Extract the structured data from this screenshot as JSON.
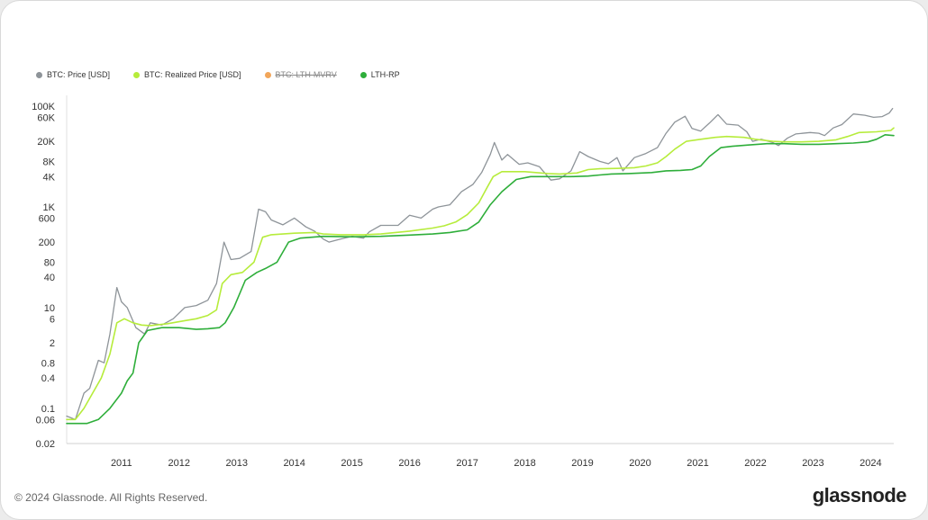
{
  "legend": [
    {
      "label": "BTC: Price [USD]",
      "color": "#8e9499",
      "active": true
    },
    {
      "label": "BTC: Realized Price [USD]",
      "color": "#b6ec3b",
      "active": true
    },
    {
      "label": "BTC: LTH-MVRV",
      "color": "#f2a65a",
      "active": false
    },
    {
      "label": "LTH-RP",
      "color": "#2eae3a",
      "active": true
    }
  ],
  "footer": {
    "copyright": "© 2024 Glassnode. All Rights Reserved.",
    "brand": "glassnode"
  },
  "chart_data": {
    "type": "line",
    "y_scale": "log",
    "ylim": [
      0.02,
      100000
    ],
    "xlim": [
      2010.55,
      2024.9
    ],
    "y_ticks": [
      {
        "value": 100000,
        "label": "100K"
      },
      {
        "value": 60000,
        "label": "60K"
      },
      {
        "value": 20000,
        "label": "20K"
      },
      {
        "value": 8000,
        "label": "8K"
      },
      {
        "value": 4000,
        "label": "4K"
      },
      {
        "value": 1000,
        "label": "1K"
      },
      {
        "value": 600,
        "label": "600"
      },
      {
        "value": 200,
        "label": "200"
      },
      {
        "value": 80,
        "label": "80"
      },
      {
        "value": 40,
        "label": "40"
      },
      {
        "value": 10,
        "label": "10"
      },
      {
        "value": 6,
        "label": "6"
      },
      {
        "value": 2,
        "label": "2"
      },
      {
        "value": 0.8,
        "label": "0.8"
      },
      {
        "value": 0.4,
        "label": "0.4"
      },
      {
        "value": 0.1,
        "label": "0.1"
      },
      {
        "value": 0.06,
        "label": "0.06"
      },
      {
        "value": 0.02,
        "label": "0.02"
      }
    ],
    "x_ticks": [
      {
        "value": 2011,
        "label": "2011"
      },
      {
        "value": 2012,
        "label": "2012"
      },
      {
        "value": 2013,
        "label": "2013"
      },
      {
        "value": 2014,
        "label": "2014"
      },
      {
        "value": 2015,
        "label": "2015"
      },
      {
        "value": 2016,
        "label": "2016"
      },
      {
        "value": 2017,
        "label": "2017"
      },
      {
        "value": 2018,
        "label": "2018"
      },
      {
        "value": 2019,
        "label": "2019"
      },
      {
        "value": 2020,
        "label": "2020"
      },
      {
        "value": 2021,
        "label": "2021"
      },
      {
        "value": 2022,
        "label": "2022"
      },
      {
        "value": 2023,
        "label": "2023"
      },
      {
        "value": 2024,
        "label": "2024"
      }
    ],
    "series": [
      {
        "name": "BTC: Price [USD]",
        "color": "#8e9499",
        "width": 1.3,
        "points": [
          [
            2010.55,
            0.07
          ],
          [
            2010.7,
            0.06
          ],
          [
            2010.85,
            0.2
          ],
          [
            2010.95,
            0.25
          ],
          [
            2011.1,
            0.9
          ],
          [
            2011.2,
            0.8
          ],
          [
            2011.3,
            3
          ],
          [
            2011.42,
            25
          ],
          [
            2011.5,
            13
          ],
          [
            2011.6,
            10
          ],
          [
            2011.75,
            4
          ],
          [
            2011.9,
            3
          ],
          [
            2012.0,
            5
          ],
          [
            2012.2,
            4.5
          ],
          [
            2012.4,
            6
          ],
          [
            2012.6,
            10
          ],
          [
            2012.8,
            11
          ],
          [
            2013.0,
            14
          ],
          [
            2013.15,
            30
          ],
          [
            2013.28,
            200
          ],
          [
            2013.4,
            90
          ],
          [
            2013.55,
            95
          ],
          [
            2013.75,
            130
          ],
          [
            2013.88,
            900
          ],
          [
            2014.0,
            800
          ],
          [
            2014.1,
            550
          ],
          [
            2014.3,
            440
          ],
          [
            2014.5,
            600
          ],
          [
            2014.7,
            400
          ],
          [
            2014.85,
            330
          ],
          [
            2015.0,
            230
          ],
          [
            2015.1,
            200
          ],
          [
            2015.3,
            230
          ],
          [
            2015.5,
            260
          ],
          [
            2015.7,
            240
          ],
          [
            2015.8,
            320
          ],
          [
            2016.0,
            430
          ],
          [
            2016.3,
            430
          ],
          [
            2016.5,
            680
          ],
          [
            2016.7,
            600
          ],
          [
            2016.9,
            900
          ],
          [
            2017.0,
            1000
          ],
          [
            2017.2,
            1100
          ],
          [
            2017.4,
            2000
          ],
          [
            2017.6,
            2800
          ],
          [
            2017.75,
            4800
          ],
          [
            2017.9,
            11000
          ],
          [
            2017.97,
            19000
          ],
          [
            2018.1,
            8500
          ],
          [
            2018.2,
            11000
          ],
          [
            2018.4,
            7000
          ],
          [
            2018.55,
            7500
          ],
          [
            2018.75,
            6300
          ],
          [
            2018.95,
            3400
          ],
          [
            2019.1,
            3600
          ],
          [
            2019.3,
            5200
          ],
          [
            2019.45,
            12500
          ],
          [
            2019.6,
            10000
          ],
          [
            2019.8,
            8000
          ],
          [
            2019.95,
            7200
          ],
          [
            2020.1,
            9500
          ],
          [
            2020.2,
            5200
          ],
          [
            2020.4,
            9500
          ],
          [
            2020.6,
            11500
          ],
          [
            2020.8,
            15000
          ],
          [
            2020.95,
            29000
          ],
          [
            2021.1,
            48000
          ],
          [
            2021.28,
            63000
          ],
          [
            2021.4,
            36000
          ],
          [
            2021.55,
            32000
          ],
          [
            2021.7,
            46000
          ],
          [
            2021.85,
            68000
          ],
          [
            2022.0,
            44000
          ],
          [
            2022.2,
            42000
          ],
          [
            2022.35,
            31000
          ],
          [
            2022.45,
            20000
          ],
          [
            2022.6,
            22000
          ],
          [
            2022.8,
            19000
          ],
          [
            2022.9,
            16500
          ],
          [
            2023.05,
            23000
          ],
          [
            2023.2,
            28000
          ],
          [
            2023.45,
            30000
          ],
          [
            2023.6,
            29000
          ],
          [
            2023.7,
            26000
          ],
          [
            2023.85,
            37000
          ],
          [
            2024.0,
            43000
          ],
          [
            2024.2,
            70000
          ],
          [
            2024.4,
            66000
          ],
          [
            2024.55,
            60000
          ],
          [
            2024.7,
            62000
          ],
          [
            2024.82,
            73000
          ],
          [
            2024.88,
            90000
          ]
        ]
      },
      {
        "name": "BTC: Realized Price [USD]",
        "color": "#b6ec3b",
        "width": 1.6,
        "points": [
          [
            2010.55,
            0.06
          ],
          [
            2010.7,
            0.06
          ],
          [
            2010.85,
            0.1
          ],
          [
            2011.0,
            0.2
          ],
          [
            2011.15,
            0.4
          ],
          [
            2011.3,
            1.2
          ],
          [
            2011.42,
            5
          ],
          [
            2011.55,
            6
          ],
          [
            2011.7,
            5
          ],
          [
            2011.85,
            4.5
          ],
          [
            2012.0,
            4.4
          ],
          [
            2012.3,
            4.8
          ],
          [
            2012.6,
            5.5
          ],
          [
            2012.8,
            6
          ],
          [
            2013.0,
            7
          ],
          [
            2013.15,
            9
          ],
          [
            2013.25,
            30
          ],
          [
            2013.4,
            45
          ],
          [
            2013.6,
            50
          ],
          [
            2013.8,
            80
          ],
          [
            2013.95,
            250
          ],
          [
            2014.1,
            280
          ],
          [
            2014.5,
            300
          ],
          [
            2014.85,
            310
          ],
          [
            2015.0,
            290
          ],
          [
            2015.3,
            280
          ],
          [
            2015.7,
            280
          ],
          [
            2016.0,
            290
          ],
          [
            2016.5,
            330
          ],
          [
            2016.9,
            380
          ],
          [
            2017.1,
            420
          ],
          [
            2017.3,
            500
          ],
          [
            2017.5,
            700
          ],
          [
            2017.7,
            1200
          ],
          [
            2017.85,
            2500
          ],
          [
            2017.95,
            4000
          ],
          [
            2018.1,
            5000
          ],
          [
            2018.5,
            5000
          ],
          [
            2018.9,
            4600
          ],
          [
            2019.1,
            4500
          ],
          [
            2019.4,
            4700
          ],
          [
            2019.6,
            5500
          ],
          [
            2019.8,
            5700
          ],
          [
            2020.1,
            5800
          ],
          [
            2020.4,
            6000
          ],
          [
            2020.6,
            6500
          ],
          [
            2020.8,
            7500
          ],
          [
            2020.95,
            10000
          ],
          [
            2021.1,
            14000
          ],
          [
            2021.3,
            20000
          ],
          [
            2021.55,
            22000
          ],
          [
            2021.8,
            24000
          ],
          [
            2022.0,
            25000
          ],
          [
            2022.3,
            24000
          ],
          [
            2022.5,
            22000
          ],
          [
            2022.8,
            20000
          ],
          [
            2023.0,
            19500
          ],
          [
            2023.3,
            19500
          ],
          [
            2023.6,
            20000
          ],
          [
            2023.9,
            21500
          ],
          [
            2024.1,
            25000
          ],
          [
            2024.3,
            30000
          ],
          [
            2024.6,
            31000
          ],
          [
            2024.85,
            33000
          ],
          [
            2024.9,
            37000
          ]
        ]
      },
      {
        "name": "LTH-RP",
        "color": "#2eae3a",
        "width": 1.6,
        "points": [
          [
            2010.55,
            0.05
          ],
          [
            2010.9,
            0.05
          ],
          [
            2011.1,
            0.06
          ],
          [
            2011.3,
            0.1
          ],
          [
            2011.5,
            0.2
          ],
          [
            2011.6,
            0.35
          ],
          [
            2011.7,
            0.5
          ],
          [
            2011.8,
            2
          ],
          [
            2011.95,
            3.5
          ],
          [
            2012.2,
            4
          ],
          [
            2012.5,
            4
          ],
          [
            2012.8,
            3.7
          ],
          [
            2013.0,
            3.8
          ],
          [
            2013.2,
            4
          ],
          [
            2013.3,
            5
          ],
          [
            2013.45,
            10
          ],
          [
            2013.65,
            35
          ],
          [
            2013.85,
            50
          ],
          [
            2014.0,
            60
          ],
          [
            2014.2,
            80
          ],
          [
            2014.4,
            200
          ],
          [
            2014.6,
            240
          ],
          [
            2015.0,
            260
          ],
          [
            2015.5,
            255
          ],
          [
            2016.0,
            260
          ],
          [
            2016.5,
            275
          ],
          [
            2016.9,
            290
          ],
          [
            2017.2,
            310
          ],
          [
            2017.5,
            350
          ],
          [
            2017.7,
            500
          ],
          [
            2017.9,
            1100
          ],
          [
            2018.1,
            2000
          ],
          [
            2018.35,
            3500
          ],
          [
            2018.6,
            4000
          ],
          [
            2018.9,
            4000
          ],
          [
            2019.3,
            4000
          ],
          [
            2019.6,
            4100
          ],
          [
            2019.8,
            4300
          ],
          [
            2020.0,
            4500
          ],
          [
            2020.3,
            4600
          ],
          [
            2020.7,
            4800
          ],
          [
            2020.95,
            5200
          ],
          [
            2021.2,
            5300
          ],
          [
            2021.4,
            5500
          ],
          [
            2021.55,
            6500
          ],
          [
            2021.7,
            10000
          ],
          [
            2021.9,
            15000
          ],
          [
            2022.1,
            16000
          ],
          [
            2022.4,
            17000
          ],
          [
            2022.7,
            18000
          ],
          [
            2023.0,
            18000
          ],
          [
            2023.3,
            17500
          ],
          [
            2023.6,
            17500
          ],
          [
            2023.9,
            18000
          ],
          [
            2024.2,
            18500
          ],
          [
            2024.45,
            19500
          ],
          [
            2024.6,
            22000
          ],
          [
            2024.75,
            27000
          ],
          [
            2024.9,
            26000
          ]
        ]
      }
    ]
  }
}
